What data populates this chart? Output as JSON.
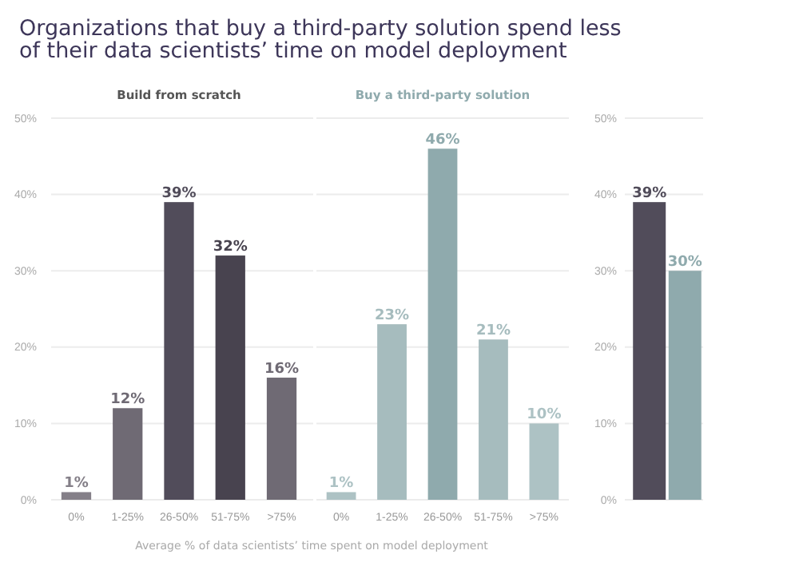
{
  "chart_data": [
    {
      "type": "bar",
      "title": "Organizations that buy a third-party solution spend less of their data scientists’ time on model deployment",
      "subtitle": "Build from scratch",
      "xlabel": "Average % of data scientists’ time spent on model deployment",
      "categories": [
        "0%",
        "1-25%",
        "26-50%",
        "51-75%",
        ">75%"
      ],
      "colors": [
        "#847f88",
        "#6f6a74",
        "#514c5a",
        "#48434f",
        "#6f6a74"
      ],
      "values": [
        1,
        12,
        39,
        32,
        16
      ],
      "value_labels": [
        "1%",
        "12%",
        "39%",
        "32%",
        "16%"
      ],
      "ylim": [
        0,
        50
      ],
      "yticks": [
        {
          "value": 0,
          "label": "0%"
        },
        {
          "value": 10,
          "label": "10%"
        },
        {
          "value": 20,
          "label": "20%"
        },
        {
          "value": 30,
          "label": "30%"
        },
        {
          "value": 40,
          "label": "40%"
        },
        {
          "value": 50,
          "label": "50%"
        }
      ],
      "grid": "y"
    },
    {
      "type": "bar",
      "subtitle": "Buy a third-party solution",
      "categories": [
        "0%",
        "1-25%",
        "26-50%",
        "51-75%",
        ">75%"
      ],
      "colors": [
        "#adc2c4",
        "#a6bcbe",
        "#8faaad",
        "#a6bcbe",
        "#adc2c4"
      ],
      "values": [
        1,
        23,
        46,
        21,
        10
      ],
      "value_labels": [
        "1%",
        "23%",
        "46%",
        "21%",
        "10%"
      ],
      "ylim": [
        0,
        50
      ],
      "yticks": [
        0,
        10,
        20,
        30,
        40,
        50
      ],
      "grid": "y",
      "tick_labels": "x"
    },
    {
      "type": "bar",
      "categories": [
        null,
        null
      ],
      "colors": [
        "#514c5a",
        "#8faaad"
      ],
      "values": [
        39,
        30
      ],
      "value_labels": [
        "39%",
        "30%"
      ],
      "ylim": [
        0,
        50
      ],
      "yticks": [
        {
          "value": 0,
          "label": "0%"
        },
        {
          "value": 10,
          "label": "10%"
        },
        {
          "value": 20,
          "label": "20%"
        },
        {
          "value": 30,
          "label": "30%"
        },
        {
          "value": 40,
          "label": "40%"
        },
        {
          "value": 50,
          "label": "50%"
        }
      ],
      "grid": "y",
      "tick_labels": "y"
    }
  ]
}
